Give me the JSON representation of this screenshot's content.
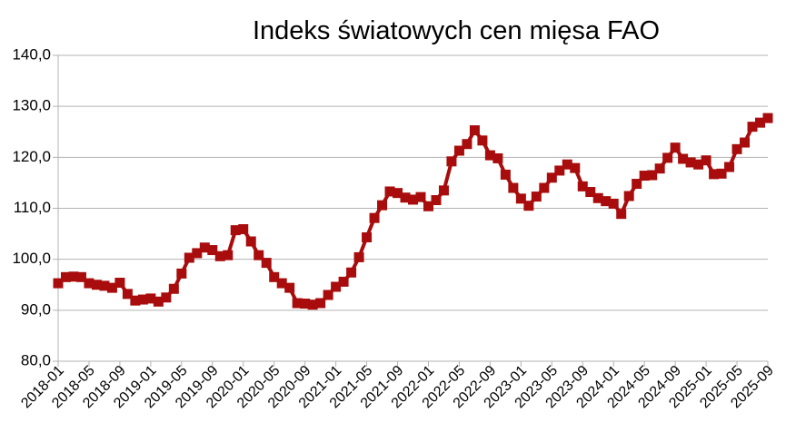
{
  "chart_data": {
    "type": "line",
    "title": "Indeks światowych cen mięsa FAO",
    "categories": [
      "2018-01",
      null,
      null,
      null,
      "2018-05",
      null,
      null,
      null,
      "2018-09",
      null,
      null,
      null,
      "2019-01",
      null,
      null,
      null,
      "2019-05",
      null,
      null,
      null,
      "2019-09",
      null,
      null,
      null,
      "2020-01",
      null,
      null,
      null,
      "2020-05",
      null,
      null,
      null,
      "2020-09",
      null,
      null,
      null,
      "2021-01",
      null,
      null,
      null,
      "2021-05",
      null,
      null,
      null,
      "2021-09",
      null,
      null,
      null,
      "2022-01",
      null,
      null,
      null,
      "2022-05",
      null,
      null,
      null,
      "2022-09",
      null,
      null,
      null,
      "2023-01",
      null,
      null,
      null,
      "2023-05",
      null,
      null,
      null,
      "2023-09",
      null,
      null,
      null,
      "2024-01",
      null,
      null,
      null,
      "2024-05",
      null,
      null,
      null,
      "2024-09",
      null,
      null,
      null,
      "2025-01",
      null,
      null,
      null,
      "2025-05",
      null,
      null,
      null,
      "2025-09"
    ],
    "values": [
      95.3,
      96.5,
      96.6,
      96.5,
      95.3,
      95.0,
      94.8,
      94.4,
      95.4,
      93.2,
      91.9,
      92.1,
      92.3,
      91.7,
      92.5,
      94.2,
      97.2,
      100.3,
      101.2,
      102.3,
      101.8,
      100.6,
      100.8,
      105.7,
      105.9,
      103.5,
      100.8,
      99.3,
      96.5,
      95.3,
      94.4,
      91.4,
      91.3,
      91.1,
      91.4,
      93.0,
      94.6,
      95.6,
      97.4,
      100.4,
      104.3,
      108.1,
      110.6,
      113.3,
      113.0,
      112.1,
      111.7,
      112.2,
      110.4,
      111.6,
      113.5,
      119.2,
      121.3,
      122.6,
      125.3,
      123.3,
      120.4,
      119.8,
      116.6,
      114.0,
      111.9,
      110.5,
      112.3,
      114.0,
      116.0,
      117.4,
      118.6,
      117.9,
      114.3,
      113.2,
      112.0,
      111.4,
      110.9,
      108.9,
      112.4,
      114.8,
      116.4,
      116.5,
      117.8,
      119.9,
      121.9,
      119.7,
      119.0,
      118.6,
      119.4,
      116.7,
      116.8,
      118.1,
      121.6,
      122.9,
      126.0,
      126.8,
      127.7
    ],
    "color": "#a80c0c",
    "ylim": [
      80,
      140
    ],
    "yticks": [
      {
        "value": 80,
        "label": "80,0"
      },
      {
        "value": 90,
        "label": "90,0"
      },
      {
        "value": 100,
        "label": "100,0"
      },
      {
        "value": 110,
        "label": "110,0"
      },
      {
        "value": 120,
        "label": "120,0"
      },
      {
        "value": 130,
        "label": "130,0"
      },
      {
        "value": 140,
        "label": "140,0"
      }
    ],
    "grid": true
  }
}
